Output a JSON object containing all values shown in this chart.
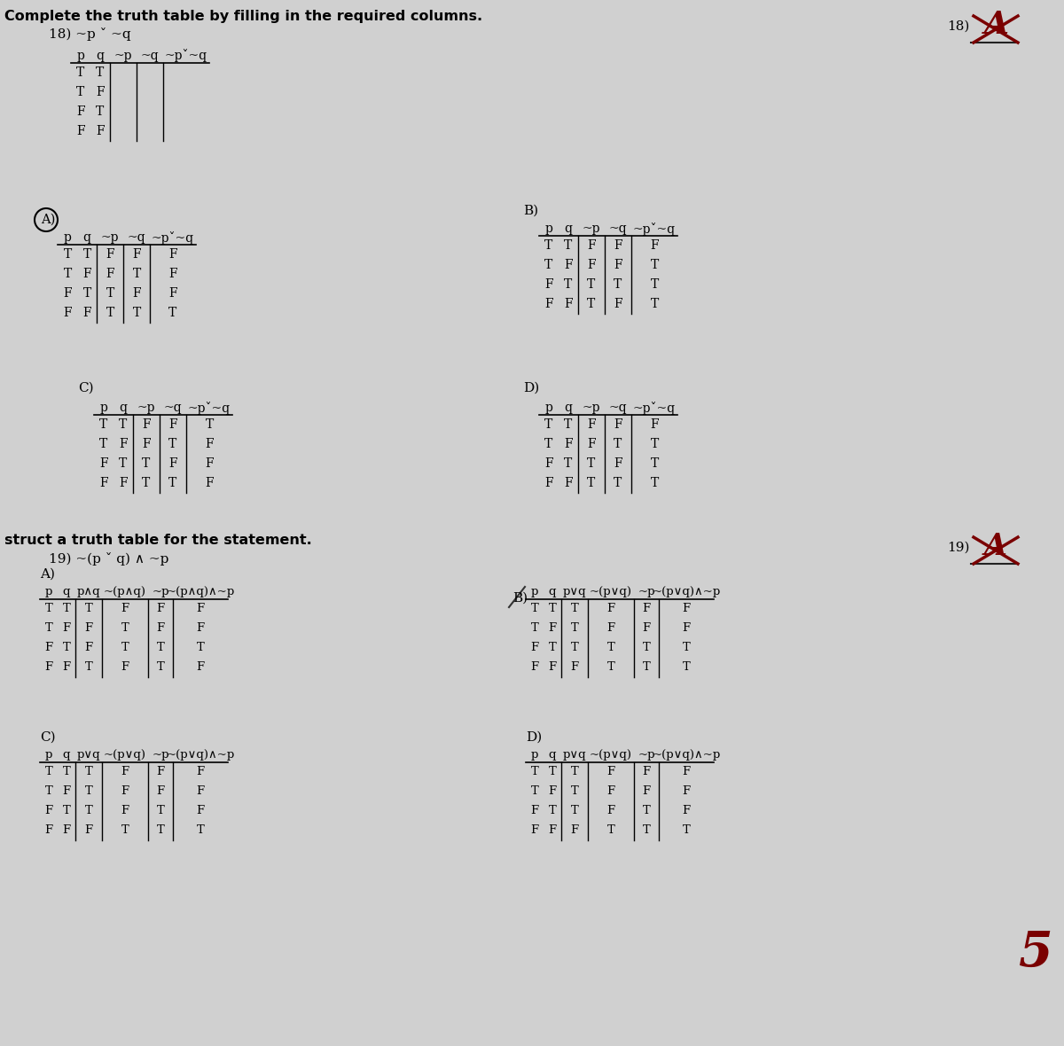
{
  "bg_color": "#d0d0d0",
  "tableBlank_headers": [
    "p",
    "q",
    "~p",
    "~q",
    "~pˇ~q"
  ],
  "tableBlank_rows": [
    [
      "T",
      "T",
      "",
      "",
      ""
    ],
    [
      "T",
      "F",
      "",
      "",
      ""
    ],
    [
      "F",
      "T",
      "",
      "",
      ""
    ],
    [
      "F",
      "F",
      "",
      "",
      ""
    ]
  ],
  "tableA18_rows": [
    [
      "T",
      "T",
      "F",
      "F",
      "F"
    ],
    [
      "T",
      "F",
      "F",
      "T",
      "F"
    ],
    [
      "F",
      "T",
      "T",
      "F",
      "F"
    ],
    [
      "F",
      "F",
      "T",
      "T",
      "T"
    ]
  ],
  "tableB18_rows": [
    [
      "T",
      "T",
      "F",
      "F",
      "F"
    ],
    [
      "T",
      "F",
      "F",
      "F",
      "T"
    ],
    [
      "F",
      "T",
      "T",
      "T",
      "T"
    ],
    [
      "F",
      "F",
      "T",
      "F",
      "T"
    ]
  ],
  "tableC18_rows": [
    [
      "T",
      "T",
      "F",
      "F",
      "T"
    ],
    [
      "T",
      "F",
      "F",
      "T",
      "F"
    ],
    [
      "F",
      "T",
      "T",
      "F",
      "F"
    ],
    [
      "F",
      "F",
      "T",
      "T",
      "F"
    ]
  ],
  "tableD18_rows": [
    [
      "T",
      "T",
      "F",
      "F",
      "F"
    ],
    [
      "T",
      "F",
      "F",
      "T",
      "T"
    ],
    [
      "F",
      "T",
      "T",
      "F",
      "T"
    ],
    [
      "F",
      "F",
      "T",
      "T",
      "T"
    ]
  ],
  "tableA19_headers": [
    "p",
    "q",
    "p∧q",
    "~(p∧q)",
    "~p",
    "~(p∧q)∧~p"
  ],
  "tableA19_rows": [
    [
      "T",
      "T",
      "T",
      "F",
      "F",
      "F"
    ],
    [
      "T",
      "F",
      "F",
      "T",
      "F",
      "F"
    ],
    [
      "F",
      "T",
      "F",
      "T",
      "T",
      "T"
    ],
    [
      "F",
      "F",
      "T",
      "F",
      "T",
      "F"
    ]
  ],
  "tableB19_headers": [
    "p",
    "q",
    "p∨q",
    "~(p∨q)",
    "~p",
    "~(p∨q)∧~p"
  ],
  "tableB19_rows": [
    [
      "T",
      "T",
      "T",
      "F",
      "F",
      "F"
    ],
    [
      "T",
      "F",
      "T",
      "F",
      "F",
      "F"
    ],
    [
      "F",
      "T",
      "T",
      "T",
      "T",
      "T"
    ],
    [
      "F",
      "F",
      "F",
      "T",
      "T",
      "T"
    ]
  ],
  "tableC19_headers": [
    "p",
    "q",
    "p∨q",
    "~(p∨q)",
    "~p",
    "~(p∨q)∧~p"
  ],
  "tableC19_rows": [
    [
      "T",
      "T",
      "T",
      "F",
      "F",
      "F"
    ],
    [
      "T",
      "F",
      "T",
      "F",
      "F",
      "F"
    ],
    [
      "F",
      "T",
      "T",
      "F",
      "T",
      "F"
    ],
    [
      "F",
      "F",
      "F",
      "T",
      "T",
      "T"
    ]
  ],
  "tableD19_headers": [
    "p",
    "q",
    "p∨q",
    "~(p∨q)",
    "~p",
    "~(p∨q)∧~p"
  ],
  "tableD19_rows": [
    [
      "T",
      "T",
      "T",
      "F",
      "F",
      "F"
    ],
    [
      "T",
      "F",
      "T",
      "F",
      "F",
      "F"
    ],
    [
      "F",
      "T",
      "T",
      "F",
      "T",
      "F"
    ],
    [
      "F",
      "F",
      "F",
      "T",
      "T",
      "T"
    ]
  ]
}
